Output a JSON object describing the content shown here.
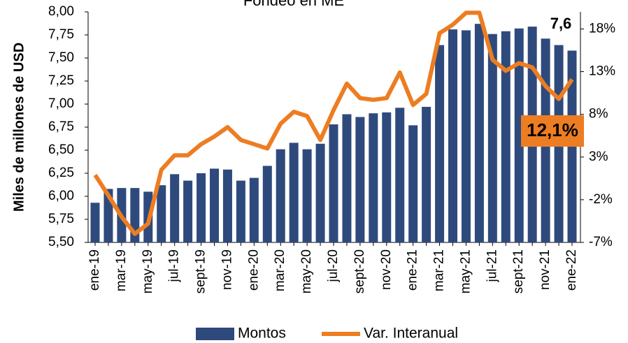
{
  "chart_data": {
    "type": "combo",
    "title": "Fondeo en ME",
    "ylabel": "Miles de millones de USD",
    "categories": [
      "ene-19",
      null,
      "mar-19",
      null,
      "may-19",
      null,
      "jul-19",
      null,
      "sept-19",
      null,
      "nov-19",
      null,
      "ene-20",
      null,
      "mar-20",
      null,
      "may-20",
      null,
      "jul-20",
      null,
      "sept-20",
      null,
      "nov-20",
      null,
      "ene-21",
      null,
      "mar-21",
      null,
      "may-21",
      null,
      "jul-21",
      null,
      "sept-21",
      null,
      "nov-21",
      null,
      "ene-22"
    ],
    "series": [
      {
        "name": "Montos",
        "type": "bar",
        "color": "#2e4a7d",
        "axis": "y",
        "values": [
          5.93,
          6.08,
          6.09,
          6.09,
          6.05,
          6.12,
          6.24,
          6.17,
          6.25,
          6.3,
          6.29,
          6.17,
          6.2,
          6.33,
          6.51,
          6.58,
          6.51,
          6.57,
          6.78,
          6.89,
          6.86,
          6.9,
          6.91,
          6.96,
          6.77,
          6.97,
          7.64,
          7.81,
          7.8,
          7.87,
          7.76,
          7.79,
          7.82,
          7.84,
          7.71,
          7.64,
          7.58
        ],
        "value_labels": [
          null,
          null,
          null,
          null,
          null,
          null,
          null,
          null,
          null,
          null,
          null,
          null,
          null,
          null,
          null,
          null,
          null,
          null,
          null,
          null,
          null,
          null,
          null,
          null,
          null,
          null,
          null,
          null,
          null,
          null,
          null,
          null,
          null,
          null,
          null,
          null,
          "7,6"
        ]
      },
      {
        "name": "Var. Interanual",
        "type": "line",
        "color": "#ed7d22",
        "axis": "y2",
        "values": [
          0.9,
          -1.5,
          -4.0,
          -6.0,
          -4.8,
          1.5,
          3.2,
          3.2,
          4.5,
          5.4,
          6.5,
          5.0,
          4.5,
          4.0,
          6.9,
          8.3,
          7.8,
          5.0,
          8.5,
          11.6,
          9.9,
          9.7,
          9.9,
          12.9,
          9.1,
          10.4,
          17.5,
          18.5,
          19.9,
          19.9,
          14.4,
          13.1,
          14.0,
          13.5,
          11.3,
          9.8,
          12.1
        ],
        "value_labels": [
          null,
          null,
          null,
          null,
          null,
          null,
          null,
          null,
          null,
          null,
          null,
          null,
          null,
          null,
          null,
          null,
          null,
          null,
          null,
          null,
          null,
          null,
          null,
          null,
          null,
          null,
          null,
          null,
          null,
          null,
          null,
          null,
          null,
          null,
          null,
          null,
          "12,1%"
        ]
      }
    ],
    "ylim": [
      5.5,
      8.0
    ],
    "yticks": [
      {
        "value": 5.5,
        "label": "5,50"
      },
      {
        "value": 5.75,
        "label": "5,75"
      },
      {
        "value": 6.0,
        "label": "6,00"
      },
      {
        "value": 6.25,
        "label": "6,25"
      },
      {
        "value": 6.5,
        "label": "6,50"
      },
      {
        "value": 6.75,
        "label": "6,75"
      },
      {
        "value": 7.0,
        "label": "7,00"
      },
      {
        "value": 7.25,
        "label": "7,25"
      },
      {
        "value": 7.5,
        "label": "7,50"
      },
      {
        "value": 7.75,
        "label": "7,75"
      },
      {
        "value": 8.0,
        "label": "8,00"
      }
    ],
    "y2lim": [
      -7,
      20
    ],
    "y2ticks": [
      {
        "value": -7,
        "label": "-7%"
      },
      {
        "value": -2,
        "label": "-2%"
      },
      {
        "value": 3,
        "label": "3%"
      },
      {
        "value": 8,
        "label": "8%"
      },
      {
        "value": 13,
        "label": "13%"
      },
      {
        "value": 18,
        "label": "18%"
      }
    ],
    "grid": false,
    "legend": "bottom"
  }
}
